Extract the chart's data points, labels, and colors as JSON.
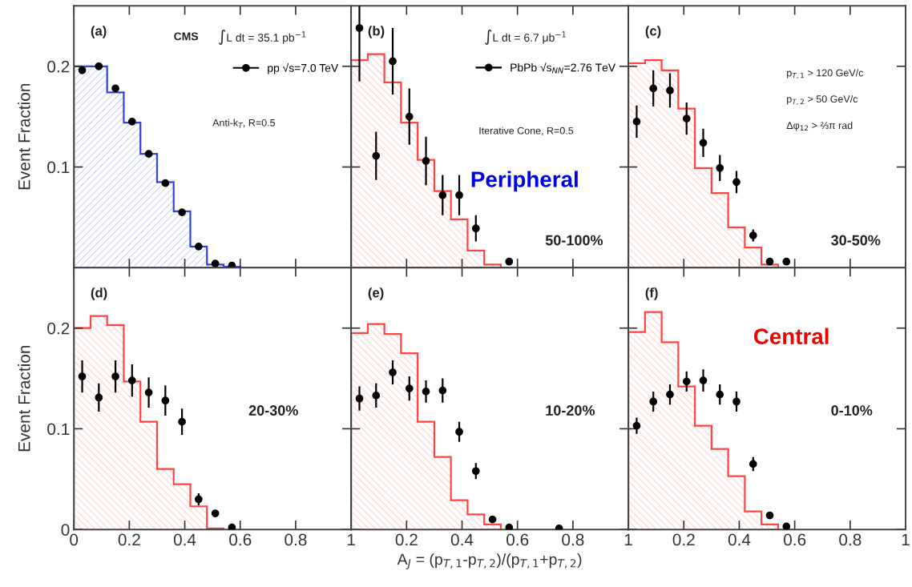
{
  "chart_data": [
    {
      "type": "histogram",
      "ylabel": "Event Fraction",
      "xlim": [
        0,
        1
      ],
      "ylim": [
        0,
        0.26
      ],
      "xticks": [
        0,
        0.2,
        0.4,
        0.6,
        0.8,
        1
      ],
      "yticks": [
        0.1,
        0.2
      ],
      "tick_labels": "y",
      "legend": "top right",
      "marker": "circle",
      "annotations": [
        "(a)",
        "CMS",
        "∫L dt = 35.1 pb$^{−1}$",
        "Anti-k$_{T}$, R=0.5"
      ],
      "series": [
        {
          "type": "histogram",
          "color": "#3344dd",
          "bins": [
            0,
            0.06,
            0.12,
            0.18,
            0.24,
            0.3,
            0.36,
            0.42,
            0.48,
            0.54,
            0.6
          ],
          "values": [
            0.2,
            0.2,
            0.174,
            0.144,
            0.113,
            0.085,
            0.056,
            0.021,
            0.003,
            0.001
          ]
        },
        {
          "type": "scatter",
          "name": "pp √s=7.0 TeV",
          "color": "#000000",
          "x": [
            0.03,
            0.09,
            0.15,
            0.21,
            0.27,
            0.33,
            0.39,
            0.45,
            0.51,
            0.57
          ],
          "values": [
            0.196,
            0.2,
            0.178,
            0.145,
            0.113,
            0.084,
            0.055,
            0.021,
            0.004,
            0.002
          ]
        }
      ]
    },
    {
      "type": "histogram",
      "xlim": [
        0,
        1
      ],
      "ylim": [
        0,
        0.26
      ],
      "xticks": [
        0,
        0.2,
        0.4,
        0.6,
        0.8,
        1
      ],
      "yticks": [
        0.1,
        0.2
      ],
      "tick_labels": false,
      "legend": "top right",
      "marker": "circle",
      "annotations": [
        "(b)",
        "∫L dt = 6.7 μb$^{−1}$",
        "Iterative Cone, R=0.5",
        "Peripheral",
        "50-100%"
      ],
      "series": [
        {
          "type": "histogram",
          "color": "#ff4444",
          "bins": [
            0,
            0.06,
            0.12,
            0.18,
            0.24,
            0.3,
            0.36,
            0.42,
            0.48,
            0.54
          ],
          "values": [
            0.206,
            0.212,
            0.184,
            0.144,
            0.107,
            0.076,
            0.048,
            0.017,
            0.003
          ]
        },
        {
          "type": "scatter",
          "name": "PbPb √s$_{NN}$=2.76 TeV",
          "color": "#000000",
          "x": [
            0.03,
            0.09,
            0.15,
            0.21,
            0.27,
            0.33,
            0.39,
            0.45,
            0.57
          ],
          "values": [
            0.238,
            0.111,
            0.205,
            0.15,
            0.106,
            0.072,
            0.072,
            0.039,
            0.006
          ],
          "errors": [
            [
              0.185,
              0.26
            ],
            0.024,
            0.033,
            0.028,
            0.024,
            0.02,
            0.02,
            0.013,
            0.002
          ]
        }
      ]
    },
    {
      "type": "histogram",
      "xlim": [
        0,
        1
      ],
      "ylim": [
        0,
        0.26
      ],
      "xticks": [
        0,
        0.2,
        0.4,
        0.6,
        0.8,
        1
      ],
      "yticks": [
        0.1,
        0.2
      ],
      "tick_labels": false,
      "marker": "circle",
      "annotations": [
        "(c)",
        "p$_{T,1}$ > 120 GeV/c",
        "p$_{T,2}$ > 50 GeV/c",
        "Δφ$_{12}$ > ⅔π rad",
        "30-50%"
      ],
      "series": [
        {
          "type": "histogram",
          "color": "#ff4444",
          "bins": [
            0,
            0.06,
            0.12,
            0.18,
            0.24,
            0.3,
            0.36,
            0.42,
            0.48,
            0.54
          ],
          "values": [
            0.203,
            0.206,
            0.196,
            0.158,
            0.099,
            0.074,
            0.04,
            0.02,
            0.003
          ]
        },
        {
          "type": "scatter",
          "color": "#000000",
          "x": [
            0.03,
            0.09,
            0.15,
            0.21,
            0.27,
            0.33,
            0.39,
            0.45,
            0.51,
            0.57
          ],
          "values": [
            0.145,
            0.178,
            0.176,
            0.148,
            0.124,
            0.099,
            0.085,
            0.032,
            0.006,
            0.006
          ],
          "errors": [
            0.016,
            0.018,
            0.017,
            0.016,
            0.014,
            0.013,
            0.011,
            0.006,
            null,
            null
          ]
        }
      ]
    },
    {
      "type": "histogram",
      "ylabel": "Event Fraction",
      "xlim": [
        0,
        1
      ],
      "ylim": [
        0,
        0.26
      ],
      "xticks": [
        0,
        0.2,
        0.4,
        0.6,
        0.8,
        1
      ],
      "yticks": [
        0,
        0.1,
        0.2
      ],
      "marker": "circle",
      "annotations": [
        "(d)",
        "20-30%"
      ],
      "series": [
        {
          "type": "histogram",
          "color": "#ff4444",
          "bins": [
            0,
            0.06,
            0.12,
            0.18,
            0.24,
            0.3,
            0.36,
            0.42,
            0.48,
            0.54
          ],
          "values": [
            0.2,
            0.212,
            0.203,
            0.147,
            0.107,
            0.06,
            0.045,
            0.023,
            0.001
          ]
        },
        {
          "type": "scatter",
          "color": "#000000",
          "x": [
            0.03,
            0.09,
            0.15,
            0.21,
            0.27,
            0.33,
            0.39,
            0.45,
            0.51,
            0.57
          ],
          "values": [
            0.152,
            0.131,
            0.152,
            0.148,
            0.136,
            0.128,
            0.107,
            0.03,
            0.016,
            0.002
          ],
          "errors": [
            0.016,
            0.014,
            0.016,
            0.016,
            0.015,
            0.015,
            0.013,
            0.006,
            0.003,
            null
          ]
        }
      ]
    },
    {
      "type": "histogram",
      "xlabel": "A$_{J}$ = (p$_{T,1}$-p$_{T,2}$)/(p$_{T,1}$+p$_{T,2}$)",
      "xlim": [
        0,
        1
      ],
      "ylim": [
        0,
        0.26
      ],
      "xticks": [
        {
          "value": 0,
          "label": null
        },
        0.2,
        0.4,
        0.6,
        0.8,
        1
      ],
      "yticks": [
        0,
        0.1,
        0.2
      ],
      "tick_labels": "x",
      "marker": "circle",
      "annotations": [
        "(e)",
        "10-20%"
      ],
      "series": [
        {
          "type": "histogram",
          "color": "#ff4444",
          "bins": [
            0,
            0.06,
            0.12,
            0.18,
            0.24,
            0.3,
            0.36,
            0.42,
            0.48,
            0.54
          ],
          "values": [
            0.195,
            0.204,
            0.194,
            0.175,
            0.107,
            0.072,
            0.029,
            0.015,
            0.005
          ]
        },
        {
          "type": "scatter",
          "color": "#000000",
          "x": [
            0.03,
            0.09,
            0.15,
            0.21,
            0.27,
            0.33,
            0.39,
            0.45,
            0.51,
            0.57,
            0.75
          ],
          "values": [
            0.13,
            0.133,
            0.156,
            0.14,
            0.137,
            0.138,
            0.097,
            0.058,
            0.01,
            0.002,
            0.001
          ],
          "errors": [
            0.012,
            0.012,
            0.012,
            0.012,
            0.011,
            0.012,
            0.01,
            0.008,
            0.003,
            null,
            null
          ]
        }
      ]
    },
    {
      "type": "histogram",
      "xlim": [
        0,
        1
      ],
      "ylim": [
        0,
        0.26
      ],
      "xticks": [
        {
          "value": 0,
          "label": null
        },
        0.2,
        0.4,
        0.6,
        0.8,
        1
      ],
      "yticks": [
        0,
        0.1,
        0.2
      ],
      "tick_labels": "x",
      "marker": "circle",
      "annotations": [
        "(f)",
        "Central",
        "0-10%"
      ],
      "series": [
        {
          "type": "histogram",
          "color": "#ff4444",
          "bins": [
            0,
            0.06,
            0.12,
            0.18,
            0.24,
            0.3,
            0.36,
            0.42,
            0.48,
            0.54
          ],
          "values": [
            0.196,
            0.216,
            0.186,
            0.142,
            0.103,
            0.08,
            0.053,
            0.018,
            0.005
          ]
        },
        {
          "type": "scatter",
          "color": "#000000",
          "x": [
            0.03,
            0.09,
            0.15,
            0.21,
            0.27,
            0.33,
            0.39,
            0.45,
            0.51,
            0.57
          ],
          "values": [
            0.103,
            0.127,
            0.134,
            0.147,
            0.148,
            0.134,
            0.127,
            0.065,
            0.014,
            0.003
          ],
          "errors": [
            0.008,
            0.01,
            0.01,
            0.01,
            0.011,
            0.01,
            0.01,
            0.007,
            null,
            null
          ]
        }
      ]
    }
  ]
}
